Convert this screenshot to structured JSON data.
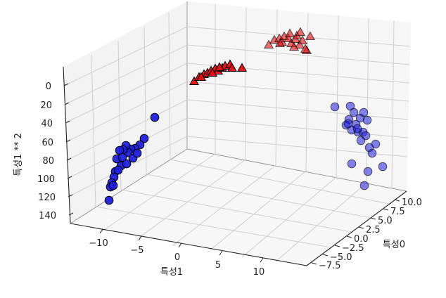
{
  "chart_data": {
    "type": "scatter",
    "xlabel": "특성0",
    "ylabel": "특성1",
    "zlabel": "특성1 ** 2",
    "x_ticks": [
      "10.0",
      "7.5",
      "5.0",
      "2.5",
      "0.0",
      "−2.5",
      "−5.0",
      "−7.5"
    ],
    "y_ticks": [
      "−10",
      "−5",
      "0",
      "5",
      "10"
    ],
    "z_ticks": [
      "0",
      "20",
      "40",
      "60",
      "80",
      "100",
      "120",
      "140"
    ],
    "series": [
      {
        "marker": "circle",
        "color": "#1f1fdd",
        "edge": "#000000"
      },
      {
        "marker": "triangle",
        "color": "#e01010",
        "edge": "#000000"
      }
    ]
  }
}
